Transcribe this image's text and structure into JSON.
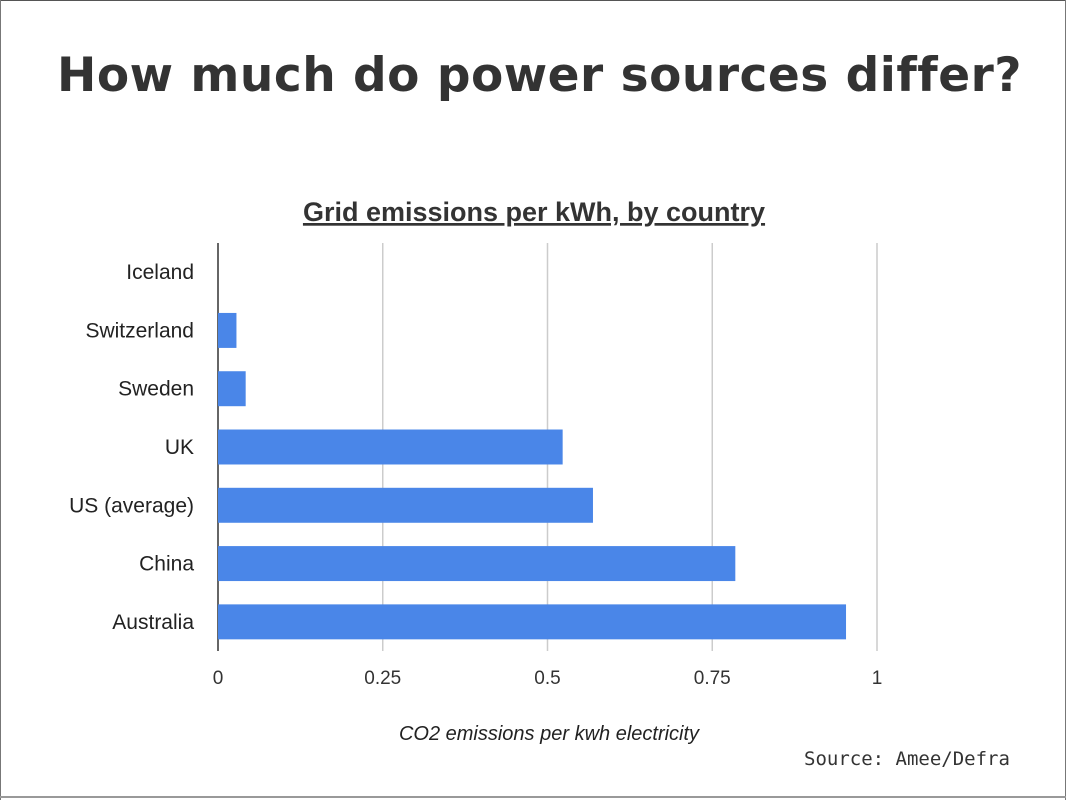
{
  "slide": {
    "title": "How much do power sources differ?",
    "source": "Source: Amee/Defra"
  },
  "chart_data": {
    "type": "bar",
    "orientation": "horizontal",
    "title": "Grid emissions per kWh, by country",
    "xlabel": "CO2 emissions per kwh electricity",
    "ylabel": "",
    "categories": [
      "Iceland",
      "Switzerland",
      "Sweden",
      "UK",
      "US (average)",
      "China",
      "Australia"
    ],
    "values": [
      0.0,
      0.028,
      0.042,
      0.523,
      0.569,
      0.785,
      0.953
    ],
    "xlim": [
      0,
      1
    ],
    "ticks": [
      0,
      0.25,
      0.5,
      0.75,
      1
    ],
    "tick_labels": [
      "0",
      "0.25",
      "0.5",
      "0.75",
      "1"
    ],
    "grid": true,
    "bar_color": "#4a86e8"
  }
}
